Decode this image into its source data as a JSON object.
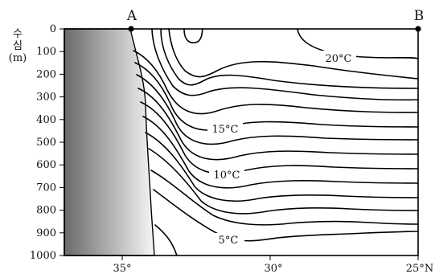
{
  "figure": {
    "point_a": "A",
    "point_b": "B",
    "y_axis_label": [
      "수",
      "심",
      "(m)"
    ],
    "depth_ticks": [
      "0",
      "100",
      "200",
      "300",
      "400",
      "500",
      "600",
      "700",
      "800",
      "900",
      "1000"
    ],
    "lat_ticks": [
      "35°",
      "30°",
      "25°N"
    ],
    "isotherm_labels": [
      "20°C",
      "15°C",
      "10°C",
      "5°C"
    ],
    "colors": {
      "land_dark": "#6a6a6a",
      "land_light": "#f6f6f6",
      "line": "#000000"
    }
  }
}
